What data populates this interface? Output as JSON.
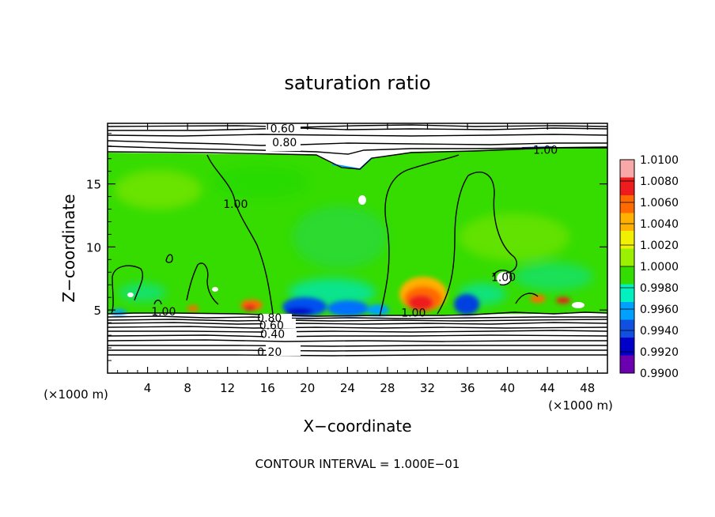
{
  "chart_data": {
    "type": "heatmap",
    "title": "saturation ratio",
    "xlabel": "X−coordinate",
    "ylabel": "Z−coordinate",
    "x_unit_label": "(×1000 m)",
    "y_unit_label": "(×1000 m)",
    "xlim": [
      0,
      50
    ],
    "ylim": [
      0,
      19.8
    ],
    "x_ticks": [
      4,
      8,
      12,
      16,
      20,
      24,
      28,
      32,
      36,
      40,
      44,
      48
    ],
    "y_ticks": [
      5,
      10,
      15
    ],
    "footer": "CONTOUR INTERVAL = 1.000E−01",
    "colorbar": {
      "levels": [
        "1.0100",
        "1.0080",
        "1.0060",
        "1.0040",
        "1.0020",
        "1.0000",
        "0.9980",
        "0.9960",
        "0.9940",
        "0.9920",
        "0.9900"
      ],
      "colors": [
        "#f8a8a8",
        "#ee1c1c",
        "#ff6a00",
        "#ffb000",
        "#f0f000",
        "#9af000",
        "#33dd00",
        "#00f0c0",
        "#00a0ff",
        "#1050e0",
        "#0000c8",
        "#6a00b0"
      ]
    },
    "contour_labels": [
      {
        "text": "0.60",
        "x": 17.5,
        "y": 19.4
      },
      {
        "text": "0.80",
        "x": 17.7,
        "y": 18.3
      },
      {
        "text": "1.00",
        "x": 43.8,
        "y": 17.7
      },
      {
        "text": "1.00",
        "x": 12.8,
        "y": 13.4
      },
      {
        "text": "1.00",
        "x": 39.6,
        "y": 7.6
      },
      {
        "text": "1.00",
        "x": 5.6,
        "y": 4.9
      },
      {
        "text": "1.00",
        "x": 30.6,
        "y": 4.8
      },
      {
        "text": "0.80",
        "x": 16.2,
        "y": 4.4
      },
      {
        "text": "0.60",
        "x": 16.4,
        "y": 3.8
      },
      {
        "text": "0.40",
        "x": 16.5,
        "y": 3.1
      },
      {
        "text": "0.20",
        "x": 16.2,
        "y": 1.7
      }
    ]
  }
}
